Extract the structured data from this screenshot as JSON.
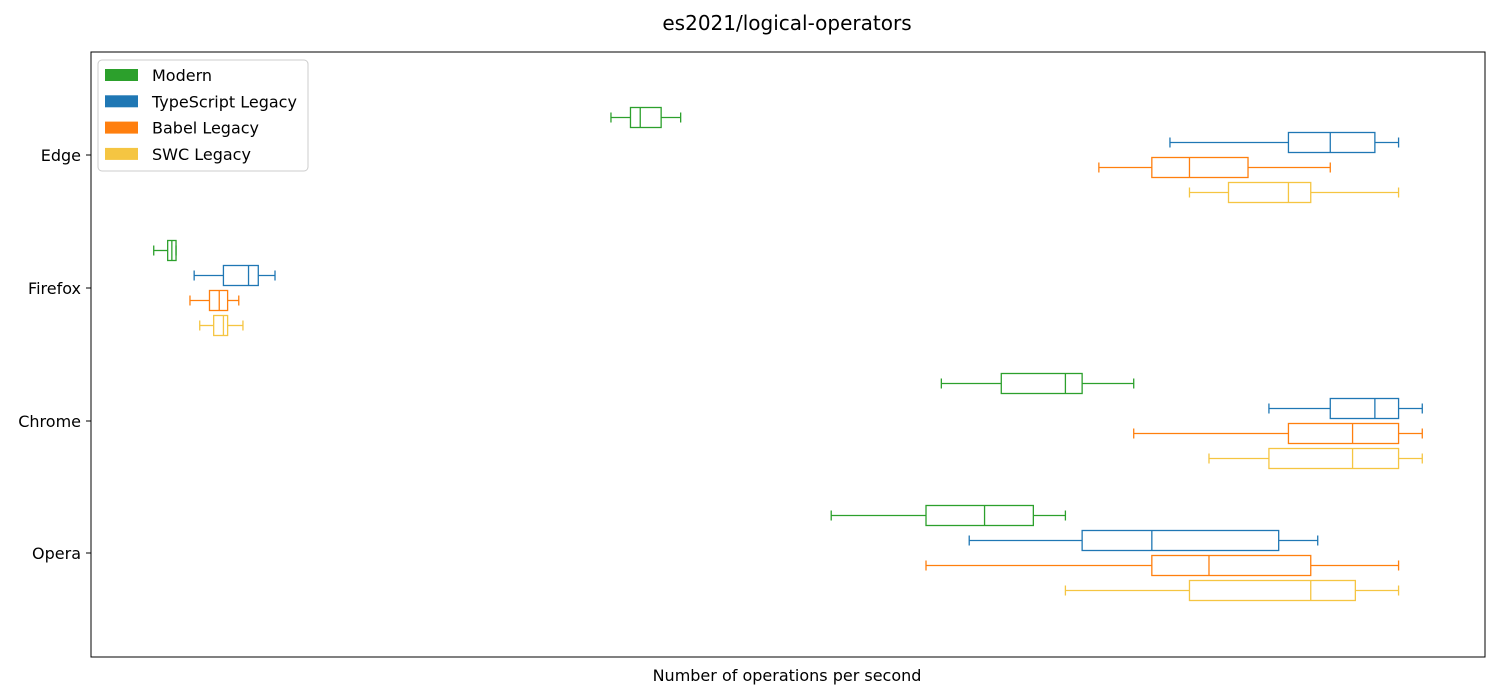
{
  "chart_data": {
    "type": "boxplot-horizontal",
    "title": "es2021/logical-operators",
    "xlabel": "Number of operations per second",
    "ylabel": "",
    "x_ticks_shown": false,
    "xlim": [
      0,
      1000
    ],
    "grid": false,
    "legend_position": "upper-left",
    "categories": [
      "Edge",
      "Firefox",
      "Chrome",
      "Opera"
    ],
    "series": [
      {
        "name": "Modern",
        "color": "#2ca02c",
        "boxes": [
          {
            "category": "Edge",
            "min": 373,
            "q1": 387,
            "median": 394,
            "q3": 409,
            "max": 423
          },
          {
            "category": "Firefox",
            "min": 45,
            "q1": 55,
            "median": 58,
            "q3": 61,
            "max": 61
          },
          {
            "category": "Chrome",
            "min": 610,
            "q1": 653,
            "median": 699,
            "q3": 711,
            "max": 748
          },
          {
            "category": "Opera",
            "min": 531,
            "q1": 599,
            "median": 641,
            "q3": 676,
            "max": 699
          }
        ]
      },
      {
        "name": "TypeScript Legacy",
        "color": "#1f77b4",
        "boxes": [
          {
            "category": "Edge",
            "min": 774,
            "q1": 859,
            "median": 889,
            "q3": 921,
            "max": 938
          },
          {
            "category": "Firefox",
            "min": 74,
            "q1": 95,
            "median": 113,
            "q3": 120,
            "max": 132
          },
          {
            "category": "Chrome",
            "min": 845,
            "q1": 889,
            "median": 921,
            "q3": 938,
            "max": 955
          },
          {
            "category": "Opera",
            "min": 630,
            "q1": 711,
            "median": 761,
            "q3": 852,
            "max": 880
          }
        ]
      },
      {
        "name": "Babel Legacy",
        "color": "#ff7f0e",
        "boxes": [
          {
            "category": "Edge",
            "min": 723,
            "q1": 761,
            "median": 788,
            "q3": 830,
            "max": 889
          },
          {
            "category": "Firefox",
            "min": 71,
            "q1": 85,
            "median": 92,
            "q3": 98,
            "max": 106
          },
          {
            "category": "Chrome",
            "min": 748,
            "q1": 859,
            "median": 905,
            "q3": 938,
            "max": 955
          },
          {
            "category": "Opera",
            "min": 599,
            "q1": 761,
            "median": 802,
            "q3": 875,
            "max": 938
          }
        ]
      },
      {
        "name": "SWC Legacy",
        "color": "#f5c542",
        "boxes": [
          {
            "category": "Edge",
            "min": 788,
            "q1": 816,
            "median": 859,
            "q3": 875,
            "max": 938
          },
          {
            "category": "Firefox",
            "min": 78,
            "q1": 88,
            "median": 95,
            "q3": 98,
            "max": 109
          },
          {
            "category": "Chrome",
            "min": 802,
            "q1": 845,
            "median": 905,
            "q3": 938,
            "max": 955
          },
          {
            "category": "Opera",
            "min": 699,
            "q1": 788,
            "median": 875,
            "q3": 907,
            "max": 938
          }
        ]
      }
    ]
  }
}
